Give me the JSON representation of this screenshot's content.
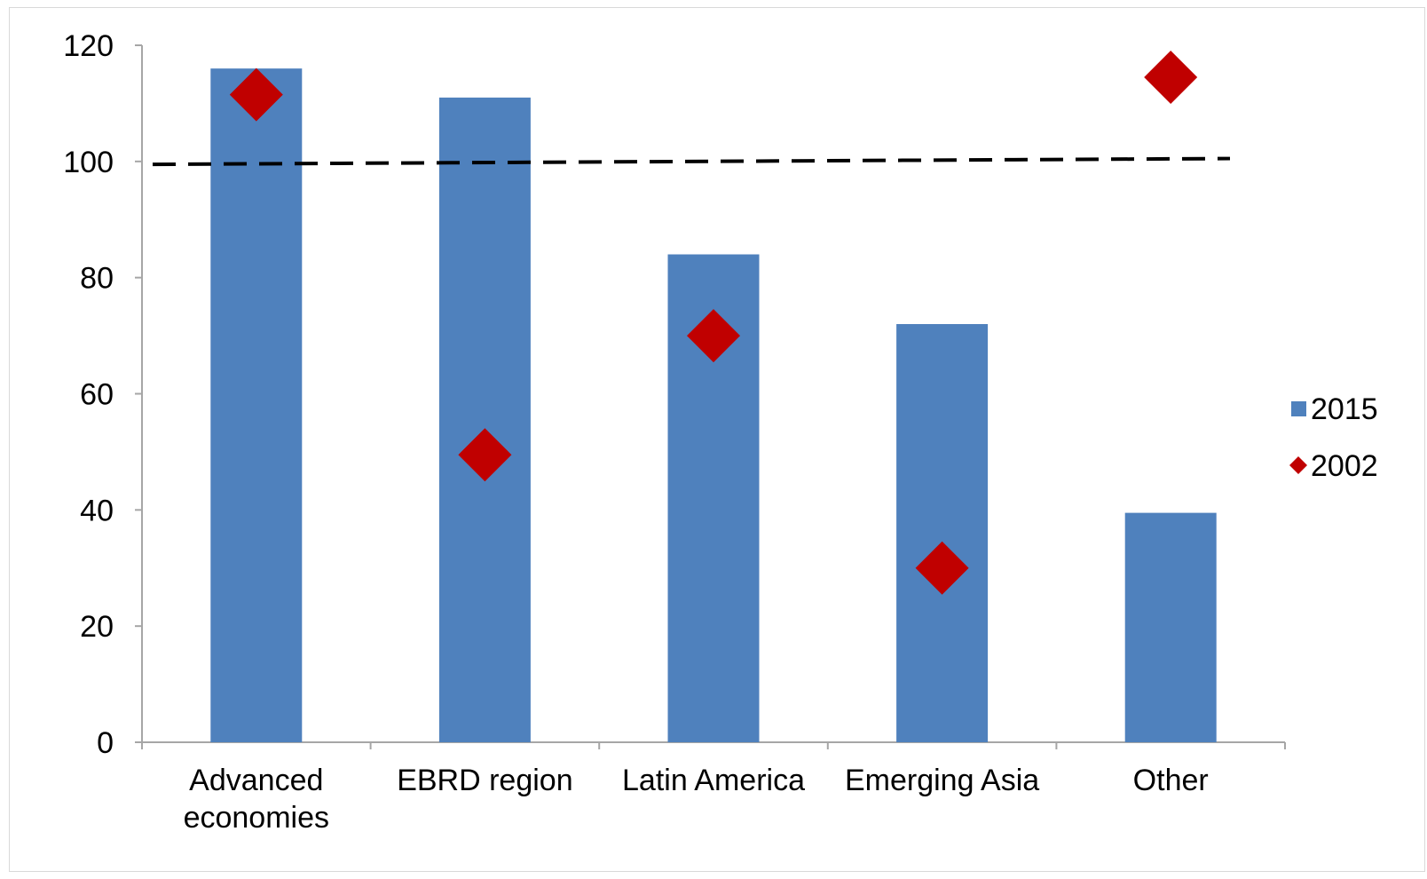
{
  "chart_data": {
    "type": "bar",
    "categories": [
      "Advanced economies",
      "EBRD region",
      "Latin America",
      "Emerging Asia",
      "Other"
    ],
    "category_lines": [
      [
        "Advanced",
        "economies"
      ],
      [
        "EBRD region"
      ],
      [
        "Latin America"
      ],
      [
        "Emerging Asia"
      ],
      [
        "Other"
      ]
    ],
    "series": [
      {
        "name": "2015",
        "kind": "bar",
        "values": [
          116,
          111,
          84,
          72,
          39.5
        ]
      },
      {
        "name": "2002",
        "kind": "marker",
        "values": [
          111.5,
          49.5,
          70,
          30,
          114.5
        ]
      }
    ],
    "reference_line": {
      "start": 99.5,
      "end": 100.5,
      "style": "dashed"
    },
    "y_ticks": [
      0,
      20,
      40,
      60,
      80,
      100,
      120
    ],
    "ylim": [
      0,
      120
    ],
    "grid": false,
    "legend_position": "right",
    "colors": {
      "2015": "#4f81bd",
      "2002": "#c00000",
      "reference": "#000000",
      "axis": "#a6a6a6"
    }
  }
}
